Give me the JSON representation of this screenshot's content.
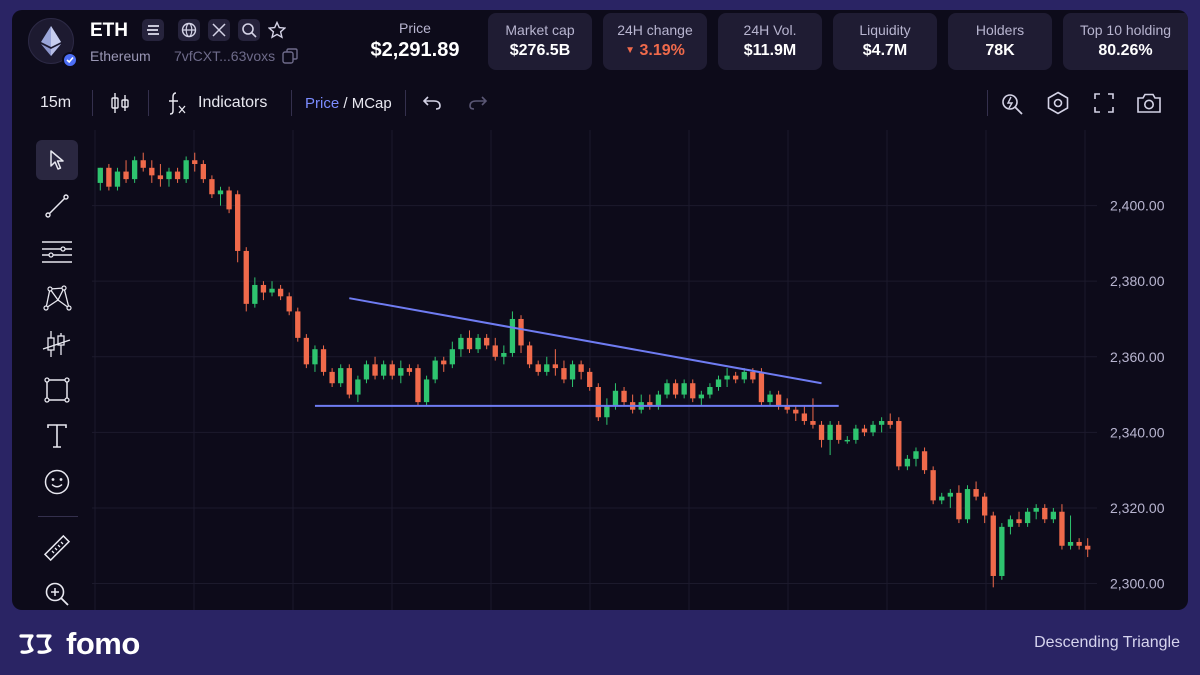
{
  "token": {
    "symbol": "ETH",
    "chain_name": "Ethereum",
    "address": "7vfCXT...63voxs"
  },
  "header": {
    "price_label": "Price",
    "price_value": "$2,291.89",
    "stats": [
      {
        "label": "Market cap",
        "value": "$276.5B",
        "negative": false
      },
      {
        "label": "24H change",
        "value": "3.19%",
        "negative": true
      },
      {
        "label": "24H Vol.",
        "value": "$11.9M",
        "negative": false
      },
      {
        "label": "Liquidity",
        "value": "$4.7M",
        "negative": false
      },
      {
        "label": "Holders",
        "value": "78K",
        "negative": false
      },
      {
        "label": "Top 10 holding",
        "value": "80.26%",
        "negative": false
      }
    ]
  },
  "toolbar": {
    "interval": "15m",
    "indicators_label": "Indicators",
    "price_toggle": "Price",
    "toggle_separator": " / ",
    "mcap_toggle": "MCap"
  },
  "tools": [
    "cursor-icon",
    "trendline-icon",
    "horizontal-lines-icon",
    "pattern-icon",
    "prediction-icon",
    "rectangle-icon",
    "text-icon",
    "emoji-icon",
    "ruler-icon",
    "zoom-in-icon"
  ],
  "colors": {
    "up": "#2ec46f",
    "down": "#f06a4b",
    "pattern_line": "#6f7cf2",
    "background": "#0d0b1a",
    "frame": "#2a2464"
  },
  "chart_data": {
    "type": "candlestick",
    "y_ticks": [
      "2,400.00",
      "2,380.00",
      "2,360.00",
      "2,340.00",
      "2,320.00",
      "2,300.00"
    ],
    "ylim": [
      2293,
      2420
    ],
    "candles": [
      [
        2406,
        2410,
        2404,
        2410
      ],
      [
        2410,
        2411,
        2404,
        2405
      ],
      [
        2405,
        2410,
        2404,
        2409
      ],
      [
        2409,
        2412,
        2406,
        2407
      ],
      [
        2407,
        2413,
        2406,
        2412
      ],
      [
        2412,
        2414,
        2409,
        2410
      ],
      [
        2410,
        2412,
        2406,
        2408
      ],
      [
        2408,
        2411,
        2405,
        2407
      ],
      [
        2407,
        2410,
        2405,
        2409
      ],
      [
        2409,
        2410,
        2406,
        2407
      ],
      [
        2407,
        2413,
        2406,
        2412
      ],
      [
        2412,
        2414,
        2409,
        2411
      ],
      [
        2411,
        2412,
        2406,
        2407
      ],
      [
        2407,
        2408,
        2402,
        2403
      ],
      [
        2403,
        2405,
        2400,
        2404
      ],
      [
        2404,
        2405,
        2398,
        2399
      ],
      [
        2403,
        2404,
        2385,
        2388
      ],
      [
        2388,
        2389,
        2372,
        2374
      ],
      [
        2374,
        2381,
        2373,
        2379
      ],
      [
        2379,
        2380,
        2375,
        2377
      ],
      [
        2377,
        2380,
        2376,
        2378
      ],
      [
        2378,
        2379,
        2375,
        2376
      ],
      [
        2376,
        2377,
        2371,
        2372
      ],
      [
        2372,
        2373,
        2364,
        2365
      ],
      [
        2365,
        2366,
        2357,
        2358
      ],
      [
        2358,
        2363,
        2356,
        2362
      ],
      [
        2362,
        2363,
        2355,
        2356
      ],
      [
        2356,
        2357,
        2352,
        2353
      ],
      [
        2353,
        2358,
        2352,
        2357
      ],
      [
        2357,
        2358,
        2349,
        2350
      ],
      [
        2350,
        2355,
        2348,
        2354
      ],
      [
        2354,
        2359,
        2353,
        2358
      ],
      [
        2358,
        2360,
        2354,
        2355
      ],
      [
        2355,
        2359,
        2354,
        2358
      ],
      [
        2358,
        2359,
        2354,
        2355
      ],
      [
        2355,
        2359,
        2353,
        2357
      ],
      [
        2357,
        2358,
        2355,
        2356
      ],
      [
        2357,
        2358,
        2347,
        2348
      ],
      [
        2348,
        2355,
        2347,
        2354
      ],
      [
        2354,
        2360,
        2353,
        2359
      ],
      [
        2359,
        2360,
        2356,
        2358
      ],
      [
        2358,
        2364,
        2357,
        2362
      ],
      [
        2362,
        2366,
        2360,
        2365
      ],
      [
        2365,
        2367,
        2361,
        2362
      ],
      [
        2362,
        2366,
        2361,
        2365
      ],
      [
        2365,
        2366,
        2362,
        2363
      ],
      [
        2363,
        2365,
        2359,
        2360
      ],
      [
        2360,
        2363,
        2358,
        2361
      ],
      [
        2361,
        2372,
        2360,
        2370
      ],
      [
        2370,
        2371,
        2361,
        2363
      ],
      [
        2363,
        2364,
        2357,
        2358
      ],
      [
        2358,
        2359,
        2355,
        2356
      ],
      [
        2356,
        2360,
        2355,
        2358
      ],
      [
        2358,
        2362,
        2355,
        2357
      ],
      [
        2357,
        2359,
        2353,
        2354
      ],
      [
        2354,
        2359,
        2352,
        2358
      ],
      [
        2358,
        2359,
        2354,
        2356
      ],
      [
        2356,
        2357,
        2351,
        2352
      ],
      [
        2352,
        2353,
        2343,
        2344
      ],
      [
        2344,
        2349,
        2342,
        2347
      ],
      [
        2347,
        2353,
        2346,
        2351
      ],
      [
        2351,
        2352,
        2347,
        2348
      ],
      [
        2348,
        2350,
        2345,
        2346
      ],
      [
        2346,
        2350,
        2345,
        2348
      ],
      [
        2348,
        2350,
        2346,
        2347
      ],
      [
        2347,
        2351,
        2346,
        2350
      ],
      [
        2350,
        2354,
        2349,
        2353
      ],
      [
        2353,
        2354,
        2349,
        2350
      ],
      [
        2350,
        2354,
        2349,
        2353
      ],
      [
        2353,
        2354,
        2348,
        2349
      ],
      [
        2349,
        2351,
        2347,
        2350
      ],
      [
        2350,
        2353,
        2349,
        2352
      ],
      [
        2352,
        2355,
        2351,
        2354
      ],
      [
        2354,
        2357,
        2352,
        2355
      ],
      [
        2355,
        2356,
        2353,
        2354
      ],
      [
        2354,
        2357,
        2353,
        2356
      ],
      [
        2356,
        2357,
        2353,
        2354
      ],
      [
        2356,
        2357,
        2347,
        2348
      ],
      [
        2348,
        2351,
        2347,
        2350
      ],
      [
        2350,
        2351,
        2346,
        2347
      ],
      [
        2347,
        2349,
        2345,
        2346
      ],
      [
        2346,
        2347,
        2343,
        2345
      ],
      [
        2345,
        2347,
        2342,
        2343
      ],
      [
        2343,
        2349,
        2341,
        2342
      ],
      [
        2342,
        2343,
        2336,
        2338
      ],
      [
        2338,
        2343,
        2334,
        2342
      ],
      [
        2342,
        2343,
        2337,
        2338
      ],
      [
        2338,
        2339,
        2337,
        2338
      ],
      [
        2338,
        2342,
        2337,
        2341
      ],
      [
        2341,
        2342,
        2339,
        2340
      ],
      [
        2340,
        2343,
        2339,
        2342
      ],
      [
        2342,
        2344,
        2340,
        2343
      ],
      [
        2343,
        2345,
        2341,
        2342
      ],
      [
        2343,
        2344,
        2330,
        2331
      ],
      [
        2331,
        2334,
        2330,
        2333
      ],
      [
        2333,
        2336,
        2331,
        2335
      ],
      [
        2335,
        2336,
        2329,
        2330
      ],
      [
        2330,
        2331,
        2321,
        2322
      ],
      [
        2322,
        2324,
        2321,
        2323
      ],
      [
        2323,
        2325,
        2320,
        2324
      ],
      [
        2324,
        2326,
        2316,
        2317
      ],
      [
        2317,
        2326,
        2316,
        2325
      ],
      [
        2325,
        2327,
        2322,
        2323
      ],
      [
        2323,
        2324,
        2316,
        2318
      ],
      [
        2318,
        2319,
        2299,
        2302
      ],
      [
        2302,
        2316,
        2301,
        2315
      ],
      [
        2315,
        2318,
        2313,
        2317
      ],
      [
        2317,
        2319,
        2315,
        2316
      ],
      [
        2316,
        2320,
        2315,
        2319
      ],
      [
        2319,
        2321,
        2317,
        2320
      ],
      [
        2320,
        2321,
        2316,
        2317
      ],
      [
        2317,
        2320,
        2316,
        2319
      ],
      [
        2319,
        2321,
        2309,
        2310
      ],
      [
        2310,
        2318,
        2309,
        2311
      ],
      [
        2311,
        2312,
        2309,
        2310
      ],
      [
        2310,
        2312,
        2307,
        2309
      ]
    ],
    "pattern": {
      "name": "Descending Triangle",
      "resistance": {
        "from_index": 29,
        "from_price": 2375.5,
        "to_index": 84,
        "to_price": 2353
      },
      "support": {
        "from_index": 25,
        "to_index": 86,
        "price": 2347
      }
    }
  },
  "footer": {
    "brand": "fomo",
    "pattern_label": "Descending Triangle"
  }
}
